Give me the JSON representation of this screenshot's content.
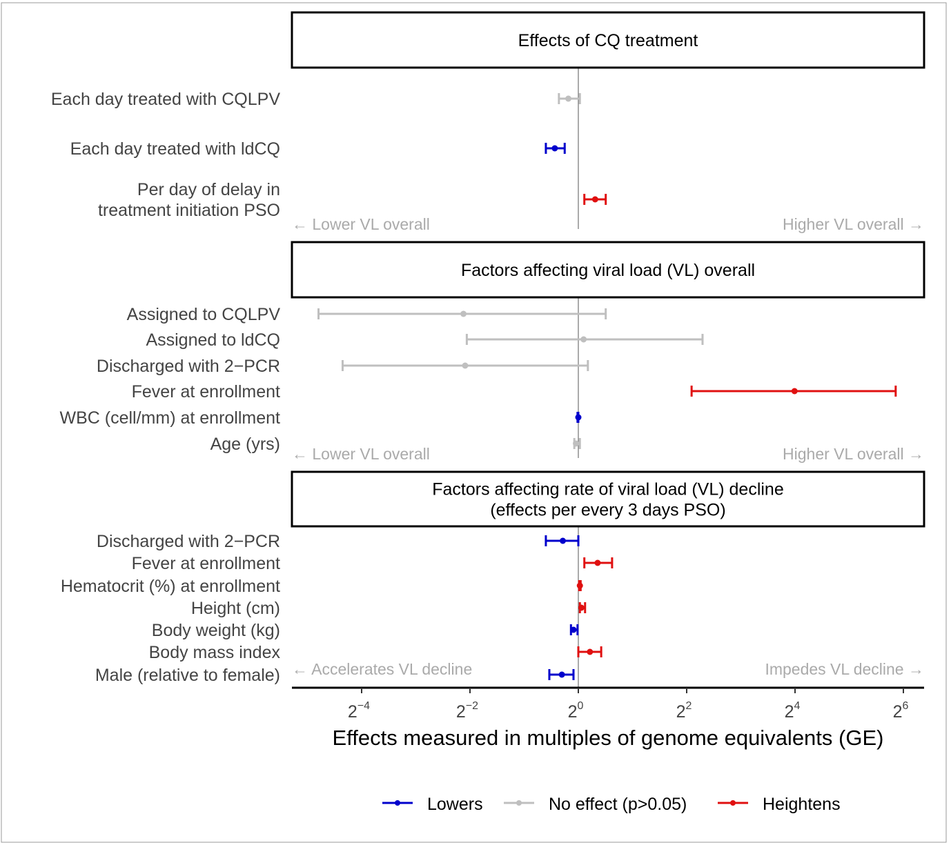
{
  "colors": {
    "lowers": "#0000cc",
    "none": "#bfbfbf",
    "heightens": "#e01010"
  },
  "chart_data": {
    "type": "forest",
    "x_scale": "log2",
    "xlim": [
      0.026,
      83
    ],
    "reference_line": 1,
    "xlabel": "Effects measured in multiples of genome equivalents (GE)",
    "x_ticks": [
      {
        "base": "2",
        "exp": "−4"
      },
      {
        "base": "2",
        "exp": "−2"
      },
      {
        "base": "2",
        "exp": "0"
      },
      {
        "base": "2",
        "exp": "2"
      },
      {
        "base": "2",
        "exp": "4"
      },
      {
        "base": "2",
        "exp": "6"
      }
    ],
    "legend": {
      "position": "bottom",
      "entries": [
        {
          "key": "lowers",
          "label": "Lowers"
        },
        {
          "key": "none",
          "label": "No effect (p>0.05)"
        },
        {
          "key": "heightens",
          "label": "Heightens"
        }
      ]
    },
    "panels": [
      {
        "title": [
          "Effects of CQ treatment"
        ],
        "left_note": "← Lower VL overall",
        "right_note": "Higher VL overall →",
        "rows": [
          {
            "label": [
              "Each day treated with CQLPV"
            ],
            "estimate": 0.88,
            "lower": 0.78,
            "upper": 1.02,
            "effect": "none"
          },
          {
            "label": [
              "Each day treated with ldCQ"
            ],
            "estimate": 0.74,
            "lower": 0.66,
            "upper": 0.84,
            "effect": "lowers"
          },
          {
            "label": [
              "Per day of delay in",
              "treatment initiation PSO"
            ],
            "estimate": 1.24,
            "lower": 1.08,
            "upper": 1.42,
            "effect": "heightens"
          }
        ]
      },
      {
        "title": [
          "Factors affecting viral load (VL) overall"
        ],
        "left_note": "← Lower VL overall",
        "right_note": "Higher VL overall →",
        "rows": [
          {
            "label": [
              "Assigned to CQLPV"
            ],
            "estimate": 0.23,
            "lower": 0.036,
            "upper": 1.42,
            "effect": "none"
          },
          {
            "label": [
              "Assigned to ldCQ"
            ],
            "estimate": 1.07,
            "lower": 0.24,
            "upper": 4.9,
            "effect": "none"
          },
          {
            "label": [
              "Discharged with 2−PCR"
            ],
            "estimate": 0.235,
            "lower": 0.049,
            "upper": 1.13,
            "effect": "none"
          },
          {
            "label": [
              "Fever at enrollment"
            ],
            "estimate": 15.9,
            "lower": 4.26,
            "upper": 58,
            "effect": "heightens"
          },
          {
            "label": [
              "WBC (cell/mm) at enrollment"
            ],
            "estimate": 1.0,
            "lower": 0.99,
            "upper": 1.0,
            "effect": "lowers"
          },
          {
            "label": [
              "Age (yrs)"
            ],
            "estimate": 0.97,
            "lower": 0.95,
            "upper": 1.02,
            "effect": "none"
          }
        ]
      },
      {
        "title": [
          "Factors affecting rate of viral load (VL) decline",
          "(effects per every 3 days PSO)"
        ],
        "left_note": "← Accelerates VL decline",
        "right_note": "Impedes VL decline →",
        "rows": [
          {
            "label": [
              "Discharged with 2−PCR"
            ],
            "estimate": 0.82,
            "lower": 0.66,
            "upper": 1.0,
            "effect": "lowers"
          },
          {
            "label": [
              "Fever at enrollment"
            ],
            "estimate": 1.28,
            "lower": 1.08,
            "upper": 1.54,
            "effect": "heightens"
          },
          {
            "label": [
              "Hematocrit (%) at enrollment"
            ],
            "estimate": 1.02,
            "lower": 1.01,
            "upper": 1.03,
            "effect": "heightens"
          },
          {
            "label": [
              "Height (cm)"
            ],
            "estimate": 1.04,
            "lower": 1.02,
            "upper": 1.09,
            "effect": "heightens"
          },
          {
            "label": [
              "Body weight (kg)"
            ],
            "estimate": 0.94,
            "lower": 0.91,
            "upper": 0.99,
            "effect": "lowers"
          },
          {
            "label": [
              "Body mass index"
            ],
            "estimate": 1.16,
            "lower": 1.0,
            "upper": 1.34,
            "effect": "heightens"
          },
          {
            "label": [
              "Male (relative to female)"
            ],
            "estimate": 0.81,
            "lower": 0.69,
            "upper": 0.94,
            "effect": "lowers"
          }
        ]
      }
    ]
  }
}
